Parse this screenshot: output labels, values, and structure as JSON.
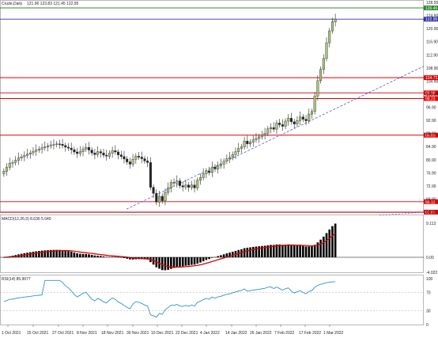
{
  "header": {
    "symbol": "Crude,Daily",
    "quote": "121.96 123.83 121.45 122.95"
  },
  "macd": {
    "label": "MACD(12,26,9) 8.636 5.040",
    "ticks": [
      "9.113",
      "0.00",
      "-4.022"
    ]
  },
  "rsi": {
    "label": "RSI(14) 85.9077",
    "ticks": [
      "100",
      "70",
      "30",
      "0"
    ]
  },
  "price_axis": {
    "ticks": [
      "128.55",
      "124.90",
      "120.90",
      "116.90",
      "112.90",
      "108.90",
      "104.90",
      "100.90",
      "96.90",
      "92.90",
      "88.90",
      "84.90",
      "80.90",
      "76.90",
      "72.90",
      "68.90",
      "64.90"
    ],
    "levels": [
      {
        "label": "126.45",
        "value": 126.45,
        "color": "#2e8b2e"
      },
      {
        "label": "122.95",
        "value": 122.95,
        "color": "#3333aa"
      },
      {
        "label": "104.73",
        "value": 104.73,
        "color": "#e00000"
      },
      {
        "label": "99.99",
        "value": 99.99,
        "color": "#e00000"
      },
      {
        "label": "98.23",
        "value": 98.23,
        "color": "#e00000"
      },
      {
        "label": "86.83",
        "value": 86.83,
        "color": "#e00000"
      },
      {
        "label": "66.12",
        "value": 66.12,
        "color": "#e00000"
      },
      {
        "label": "62.86",
        "value": 62.86,
        "color": "#e00000"
      }
    ]
  },
  "time_axis": [
    "1 Oct 2021",
    "15 Oct 2021",
    "27 Oct 2021",
    "8 Nov 2021",
    "18 Nov 2021",
    "30 Nov 2021",
    "10 Dec 2021",
    "22 Dec 2021",
    "4 Jan 2022",
    "14 Jan 2022",
    "26 Jan 2022",
    "7 Feb 2022",
    "17 Feb 2022",
    "1 Mar 2022"
  ],
  "colors": {
    "bull": "#a6c77a",
    "bear": "#222222",
    "trend": "#5555cc",
    "macd_signal": "#e00000",
    "rsi": "#2f8fdf"
  },
  "chart_data": {
    "type": "candlestick",
    "closes": [
      75.6,
      76.8,
      78.1,
      78.3,
      79.0,
      79.7,
      80.1,
      80.5,
      80.9,
      81.3,
      81.8,
      82.2,
      82.5,
      82.9,
      83.2,
      83.5,
      83.8,
      83.9,
      84.1,
      84.0,
      83.6,
      83.1,
      82.8,
      82.3,
      81.6,
      81.1,
      81.7,
      82.5,
      83.0,
      82.2,
      81.3,
      80.8,
      81.7,
      81.3,
      80.6,
      80.3,
      81.2,
      82.0,
      81.6,
      80.7,
      80.2,
      79.4,
      78.5,
      77.8,
      79.3,
      80.3,
      80.0,
      79.5,
      78.8,
      78.3,
      70.6,
      68.7,
      66.0,
      67.8,
      66.4,
      69.0,
      70.4,
      72.1,
      71.9,
      72.6,
      71.1,
      70.7,
      71.3,
      70.6,
      71.3,
      70.4,
      72.8,
      73.6,
      74.8,
      75.7,
      75.2,
      76.9,
      76.3,
      77.3,
      77.8,
      78.7,
      79.5,
      79.9,
      80.8,
      81.7,
      82.7,
      83.2,
      85.0,
      84.1,
      84.6,
      85.4,
      85.8,
      86.3,
      86.9,
      87.4,
      88.8,
      89.2,
      88.7,
      90.6,
      90.1,
      89.6,
      91.2,
      92.1,
      91.0,
      90.3,
      91.4,
      92.5,
      91.8,
      91.3,
      93.4,
      94.2,
      99.0,
      103.8,
      107.3,
      110.7,
      115.6,
      119.3,
      122.1,
      122.95
    ],
    "macd": {
      "ticks": [
        9.113,
        0,
        -4.022
      ]
    },
    "rsi": {
      "ticks": [
        100,
        70,
        30,
        0
      ]
    }
  }
}
